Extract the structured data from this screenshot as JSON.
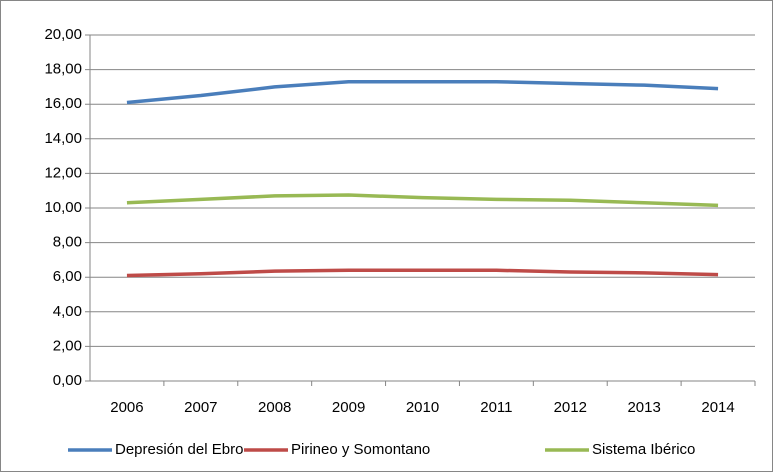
{
  "chart_data": {
    "type": "line",
    "categories": [
      "2006",
      "2007",
      "2008",
      "2009",
      "2010",
      "2011",
      "2012",
      "2013",
      "2014"
    ],
    "series": [
      {
        "name": "Depresión del Ebro",
        "color": "#4a7ebb",
        "values": [
          16.1,
          16.5,
          17.0,
          17.3,
          17.3,
          17.3,
          17.2,
          17.1,
          16.9
        ]
      },
      {
        "name": "Pirineo y Somontano",
        "color": "#be4b48",
        "values": [
          6.1,
          6.2,
          6.35,
          6.4,
          6.4,
          6.4,
          6.3,
          6.25,
          6.15
        ]
      },
      {
        "name": "Sistema Ibérico",
        "color": "#98b954",
        "values": [
          10.3,
          10.5,
          10.7,
          10.75,
          10.6,
          10.5,
          10.45,
          10.3,
          10.15
        ]
      }
    ],
    "ylim": [
      0,
      20
    ],
    "yticks": [
      {
        "value": 0,
        "label": "0,00"
      },
      {
        "value": 2,
        "label": "2,00"
      },
      {
        "value": 4,
        "label": "4,00"
      },
      {
        "value": 6,
        "label": "6,00"
      },
      {
        "value": 8,
        "label": "8,00"
      },
      {
        "value": 10,
        "label": "10,00"
      },
      {
        "value": 12,
        "label": "12,00"
      },
      {
        "value": 14,
        "label": "14,00"
      },
      {
        "value": 16,
        "label": "16,00"
      },
      {
        "value": 18,
        "label": "18,00"
      },
      {
        "value": 20,
        "label": "20,00"
      }
    ],
    "grid": true,
    "legend": "bottom"
  }
}
